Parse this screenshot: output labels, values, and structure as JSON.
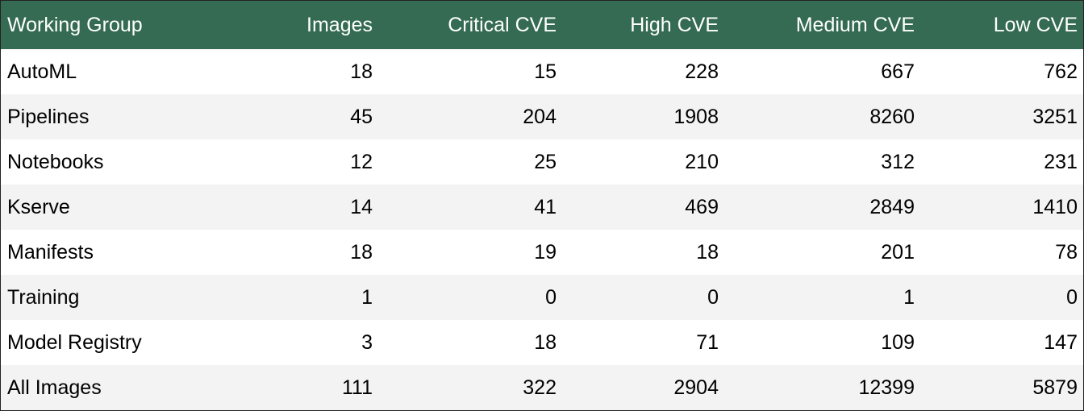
{
  "chart_data": {
    "type": "table",
    "header_color": "#346b52",
    "stripe_color": "#f3f3f3",
    "columns": [
      "Working Group",
      "Images",
      "Critical CVE",
      "High CVE",
      "Medium CVE",
      "Low CVE"
    ],
    "rows": [
      [
        "AutoML",
        "18",
        "15",
        "228",
        "667",
        "762"
      ],
      [
        "Pipelines",
        "45",
        "204",
        "1908",
        "8260",
        "3251"
      ],
      [
        "Notebooks",
        "12",
        "25",
        "210",
        "312",
        "231"
      ],
      [
        "Kserve",
        "14",
        "41",
        "469",
        "2849",
        "1410"
      ],
      [
        "Manifests",
        "18",
        "19",
        "18",
        "201",
        "78"
      ],
      [
        "Training",
        "1",
        "0",
        "0",
        "1",
        "0"
      ],
      [
        "Model Registry",
        "3",
        "18",
        "71",
        "109",
        "147"
      ],
      [
        "All Images",
        "111",
        "322",
        "2904",
        "12399",
        "5879"
      ]
    ]
  }
}
